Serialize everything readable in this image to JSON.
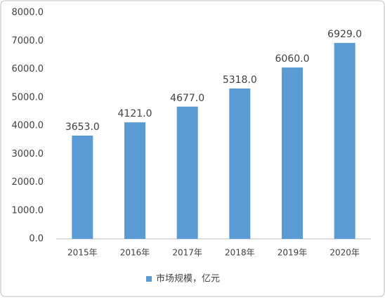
{
  "chart_data": {
    "type": "bar",
    "categories": [
      "2015年",
      "2016年",
      "2017年",
      "2018年",
      "2019年",
      "2020年"
    ],
    "series": [
      {
        "name": "市场规模，亿元",
        "color": "#5b9bd5",
        "values": [
          3653,
          4121,
          4677,
          5318,
          6060,
          6929
        ],
        "value_labels": [
          "3653.0",
          "4121.0",
          "4677.0",
          "5318.0",
          "6060.0",
          "6929.0"
        ]
      }
    ],
    "ylim": [
      0,
      8000
    ],
    "yticks": [
      {
        "value": 0,
        "label": "0.0"
      },
      {
        "value": 1000,
        "label": "1000.0"
      },
      {
        "value": 2000,
        "label": "2000.0"
      },
      {
        "value": 3000,
        "label": "3000.0"
      },
      {
        "value": 4000,
        "label": "4000.0"
      },
      {
        "value": 5000,
        "label": "5000.0"
      },
      {
        "value": 6000,
        "label": "6000.0"
      },
      {
        "value": 7000,
        "label": "7000.0"
      },
      {
        "value": 8000,
        "label": "8000.0"
      }
    ],
    "grid": false,
    "legend": "bottom"
  }
}
